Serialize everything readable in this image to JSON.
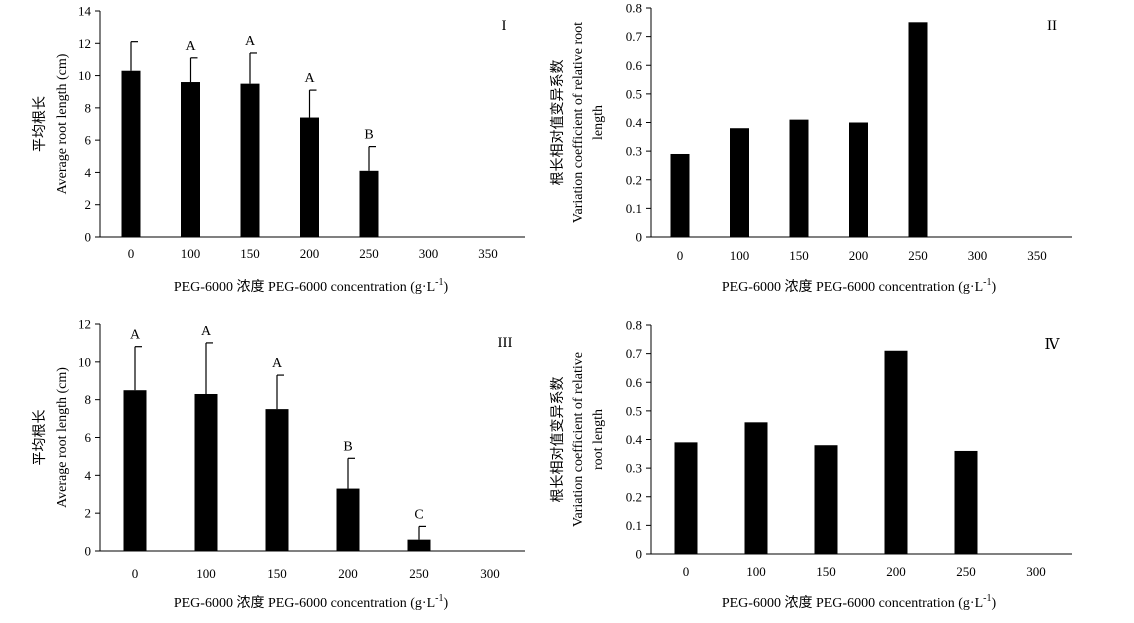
{
  "chart_data": [
    {
      "type": "bar",
      "panel_label": "I",
      "categories": [
        "0",
        "100",
        "150",
        "200",
        "250",
        "300",
        "350"
      ],
      "values": [
        10.3,
        9.6,
        9.5,
        7.4,
        4.1,
        null,
        null
      ],
      "errors": [
        1.8,
        1.5,
        1.9,
        1.7,
        1.5,
        null,
        null
      ],
      "significance": [
        "",
        "A",
        "A",
        "A",
        "B",
        "",
        ""
      ],
      "ylim": [
        0,
        14
      ],
      "yticks": [
        "0",
        "2",
        "4",
        "6",
        "8",
        "10",
        "12",
        "14"
      ],
      "ylabel_lines": [
        "平均根长",
        "Average root length (cm)"
      ],
      "xlabel": "PEG-6000 浓度 PEG-6000 concentration (g·L",
      "xlabel_sup": "-1",
      "xlabel_tail": ")"
    },
    {
      "type": "bar",
      "panel_label": "II",
      "categories": [
        "0",
        "100",
        "150",
        "200",
        "250",
        "300",
        "350"
      ],
      "values": [
        0.29,
        0.38,
        0.41,
        0.4,
        0.75,
        null,
        null
      ],
      "ylim": [
        0,
        0.8
      ],
      "yticks": [
        "0",
        "0.1",
        "0.2",
        "0.3",
        "0.4",
        "0.5",
        "0.6",
        "0.7",
        "0.8"
      ],
      "ylabel_lines": [
        "根长相对值变异系数",
        "Variation coefficient of relative root",
        "length"
      ],
      "xlabel": "PEG-6000 浓度 PEG-6000 concentration (g·L",
      "xlabel_sup": "-1",
      "xlabel_tail": ")"
    },
    {
      "type": "bar",
      "panel_label": "III",
      "categories": [
        "0",
        "100",
        "150",
        "200",
        "250",
        "300"
      ],
      "values": [
        8.5,
        8.3,
        7.5,
        3.3,
        0.6,
        null
      ],
      "errors": [
        2.3,
        2.7,
        1.8,
        1.6,
        0.7,
        null
      ],
      "significance": [
        "A",
        "A",
        "A",
        "B",
        "C",
        ""
      ],
      "ylim": [
        0,
        12
      ],
      "yticks": [
        "0",
        "2",
        "4",
        "6",
        "8",
        "10",
        "12"
      ],
      "ylabel_lines": [
        "平均根长",
        "Average root length (cm)"
      ],
      "xlabel": "PEG-6000 浓度 PEG-6000 concentration (g·L",
      "xlabel_sup": "-1",
      "xlabel_tail": ")"
    },
    {
      "type": "bar",
      "panel_label": "Ⅳ",
      "categories": [
        "0",
        "100",
        "150",
        "200",
        "250",
        "300"
      ],
      "values": [
        0.39,
        0.46,
        0.38,
        0.71,
        0.36,
        null
      ],
      "ylim": [
        0,
        0.8
      ],
      "yticks": [
        "0",
        "0.1",
        "0.2",
        "0.3",
        "0.4",
        "0.5",
        "0.6",
        "0.7",
        "0.8"
      ],
      "ylabel_lines": [
        "根长相对值变异系数",
        "Variation coefficient of relative",
        "root length"
      ],
      "xlabel": "PEG-6000 浓度 PEG-6000 concentration (g·L",
      "xlabel_sup": "-1",
      "xlabel_tail": ")"
    }
  ]
}
